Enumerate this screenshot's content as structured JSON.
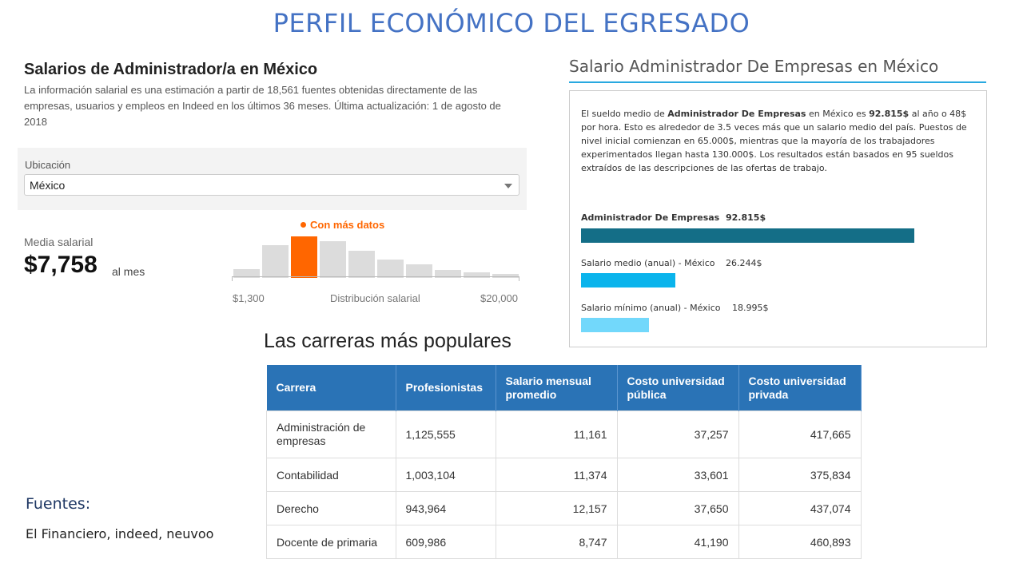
{
  "slide": {
    "title": "PERFIL ECONÓMICO DEL EGRESADO"
  },
  "indeed": {
    "title": "Salarios de Administrador/a en México",
    "description": "La información salarial es una estimación a partir de 18,561 fuentes obtenidas directamente de las empresas, usuarios y empleos en Indeed en los últimos 36 meses. Última actualización: 1 de agosto de 2018",
    "location_label": "Ubicación",
    "location_value": "México",
    "average_label": "Media salarial",
    "average_value": "$7,758",
    "average_unit": "al mes",
    "histogram": {
      "highlight_label": "Con más datos",
      "min_label": "$1,300",
      "max_label": "$20,000",
      "caption": "Distribución salarial",
      "bar_heights_relative": [
        0.22,
        0.78,
        1.0,
        0.88,
        0.65,
        0.45,
        0.33,
        0.2,
        0.14,
        0.09
      ],
      "highlight_index": 2,
      "colors": {
        "bar": "#dcdcdc",
        "highlight": "#ff6600"
      }
    }
  },
  "neuvoo": {
    "title": "Salario Administrador De Empresas en México",
    "description_pre": "El sueldo medio de ",
    "description_job": "Administrador De Empresas",
    "description_mid": " en México es ",
    "description_amount": "92.815$",
    "description_post": " al año o 48$ por hora. Esto es alrededor de 3.5 veces más que un salario medio del país. Puestos de nivel inicial comienzan en 65.000$, mientras que la mayoría de los trabajadores experimentados llegan hasta 130.000$. Los resultados están basados en 95 sueldos extraídos de las descripciones de las ofertas de trabajo.",
    "bars": [
      {
        "label": "Administrador De Empresas",
        "value": "92.815$",
        "amount": 92815,
        "color": "#146e87"
      },
      {
        "label": "Salario medio (anual) - México",
        "value": "26.244$",
        "amount": 26244,
        "color": "#0ab4ec"
      },
      {
        "label": "Salario mínimo (anual) - México",
        "value": "18.995$",
        "amount": 18995,
        "color": "#72d8fb"
      }
    ]
  },
  "careers": {
    "title": "Las carreras más populares",
    "headers": [
      "Carrera",
      "Profesionistas",
      "Salario mensual promedio",
      "Costo universidad pública",
      "Costo universidad privada"
    ],
    "rows": [
      [
        "Administración de empresas",
        "1,125,555",
        "11,161",
        "37,257",
        "417,665"
      ],
      [
        "Contabilidad",
        "1,003,104",
        "11,374",
        "33,601",
        "375,834"
      ],
      [
        "Derecho",
        "943,964",
        "12,157",
        "37,650",
        "437,074"
      ],
      [
        "Docente de primaria",
        "609,986",
        "8,747",
        "41,190",
        "460,893"
      ]
    ]
  },
  "sources": {
    "title": "Fuentes:",
    "text": "El Financiero, indeed, neuvoo"
  }
}
